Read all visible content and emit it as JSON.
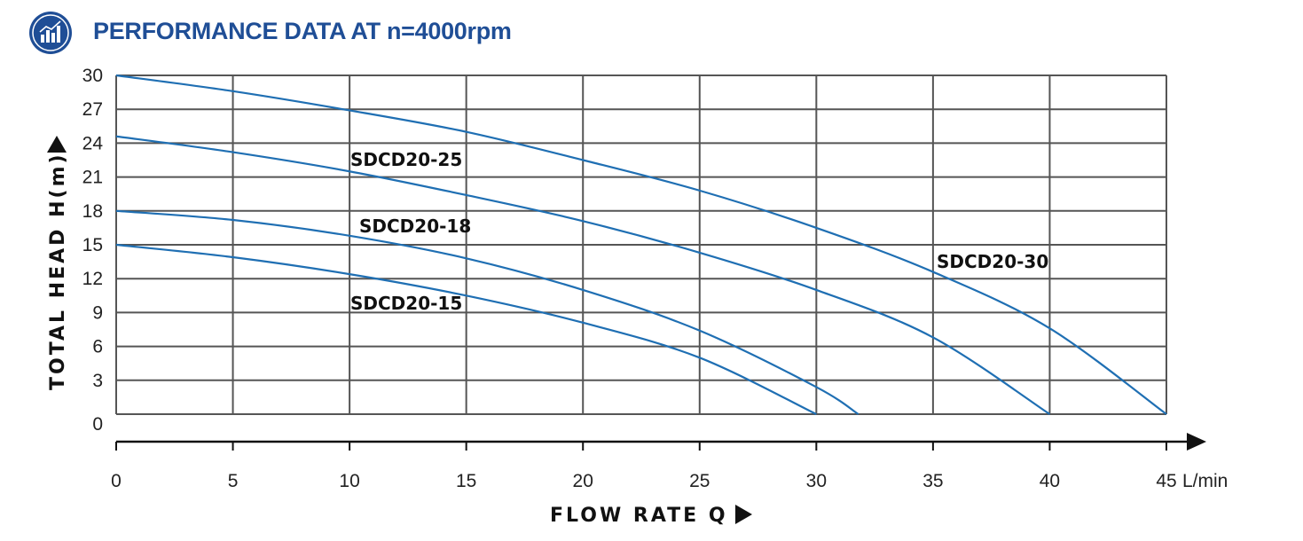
{
  "header": {
    "title": "PERFORMANCE DATA AT n=4000rpm",
    "icon": "bar-chart-icon"
  },
  "chart_data": {
    "type": "line",
    "title": "PERFORMANCE DATA AT n=4000rpm",
    "xlabel": "FLOW RATE Q",
    "ylabel": "TOTAL HEAD H(m)",
    "x_unit": "L/min",
    "xlim": [
      0,
      45
    ],
    "ylim": [
      0,
      30
    ],
    "x_ticks": [
      0,
      5,
      10,
      15,
      20,
      25,
      30,
      35,
      40,
      45
    ],
    "y_ticks": [
      0,
      3,
      6,
      9,
      12,
      15,
      18,
      21,
      24,
      27,
      30
    ],
    "grid": true,
    "line_color": "#1f6fb3",
    "series": [
      {
        "name": "SDCD20-15",
        "x": [
          0,
          5,
          10,
          15,
          20,
          25,
          30
        ],
        "y": [
          15.0,
          13.9,
          12.4,
          10.5,
          8.1,
          5.0,
          0.0
        ]
      },
      {
        "name": "SDCD20-18",
        "x": [
          0,
          5,
          10,
          15,
          20,
          25,
          30,
          31.8
        ],
        "y": [
          18.0,
          17.2,
          15.8,
          13.8,
          11.0,
          7.4,
          2.4,
          0.0
        ]
      },
      {
        "name": "SDCD20-25",
        "x": [
          0,
          5,
          10,
          15,
          20,
          25,
          30,
          35,
          40
        ],
        "y": [
          24.6,
          23.2,
          21.5,
          19.4,
          17.1,
          14.3,
          11.0,
          6.8,
          0.0
        ]
      },
      {
        "name": "SDCD20-30",
        "x": [
          0,
          5,
          10,
          15,
          20,
          25,
          30,
          35,
          40,
          45
        ],
        "y": [
          30.0,
          28.6,
          26.9,
          25.0,
          22.5,
          19.8,
          16.5,
          12.6,
          7.6,
          0.0
        ]
      }
    ]
  }
}
